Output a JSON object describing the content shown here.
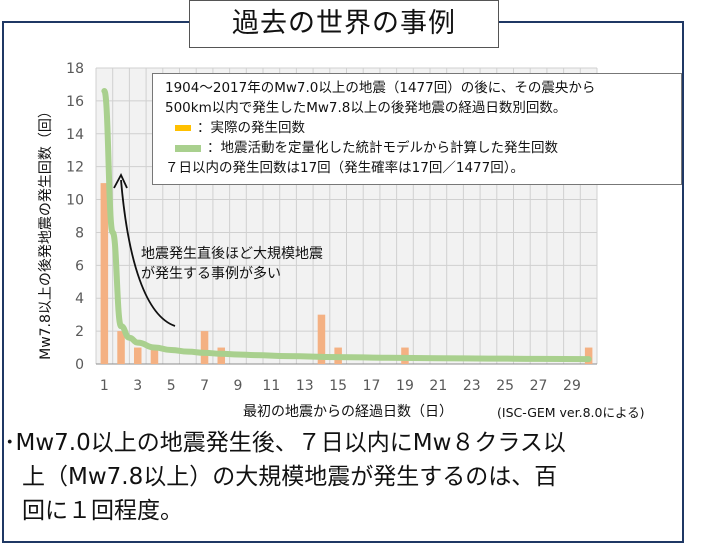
{
  "title": "過去の世界の事例",
  "note": {
    "line1": "1904～2017年のMw7.0以上の地震（1477回）の後に、その震央から",
    "line2": "500km以内で発生したMw7.8以上の後発地震の経過日数別回数。",
    "legend_actual": "：実際の発生回数",
    "legend_model": "：地震活動を定量化した統計モデルから計算した発生回数",
    "line5": "７日以内の発生回数は17回（発生確率は17回／1477回）。"
  },
  "callout": {
    "line1": "地震発生直後ほど大規模地震",
    "line2": "が発生する事例が多い"
  },
  "source": "(ISC-GEM ver.8.0による)",
  "summary": {
    "line1": "･Mw7.0以上の地震発生後、７日以内にMw８クラス以",
    "line2": "上（Mw7.8以上）の大規模地震が発生するのは、百",
    "line3": "回に１回程度。"
  },
  "colors": {
    "bar": "#f4b183",
    "curve": "#a9d08e",
    "legend_actual": "#ffc000",
    "frame": "#1f3864"
  },
  "chart_data": {
    "type": "bar",
    "xlabel": "最初の地震からの経過日数（日）",
    "ylabel": "Mw7.8以上の後発地震の発生回数（回）",
    "x_ticks": [
      1,
      3,
      5,
      7,
      9,
      11,
      13,
      15,
      17,
      19,
      21,
      23,
      25,
      27,
      29
    ],
    "y_ticks": [
      0,
      2,
      4,
      6,
      8,
      10,
      12,
      14,
      16,
      18
    ],
    "xlim": [
      0.5,
      30.5
    ],
    "ylim": [
      0,
      18
    ],
    "grid": true,
    "series": [
      {
        "name": "実際の発生回数",
        "type": "bar",
        "x": [
          1,
          2,
          3,
          4,
          5,
          6,
          7,
          8,
          9,
          10,
          11,
          12,
          13,
          14,
          15,
          16,
          17,
          18,
          19,
          20,
          21,
          22,
          23,
          24,
          25,
          26,
          27,
          28,
          29,
          30
        ],
        "values": [
          11,
          2,
          1,
          1,
          0,
          0,
          2,
          1,
          0,
          0,
          0,
          0,
          0,
          3,
          1,
          0,
          0,
          0,
          1,
          0,
          0,
          0,
          0,
          0,
          0,
          0,
          0,
          0,
          0,
          1
        ]
      },
      {
        "name": "地震活動を定量化した統計モデルから計算した発生回数",
        "type": "line",
        "x": [
          1,
          1.5,
          2,
          2.5,
          3,
          4,
          5,
          6,
          7,
          8,
          9,
          10,
          12,
          15,
          18,
          21,
          24,
          27,
          30
        ],
        "values": [
          16.6,
          8.0,
          2.3,
          1.6,
          1.3,
          1.0,
          0.85,
          0.75,
          0.68,
          0.62,
          0.58,
          0.54,
          0.48,
          0.42,
          0.38,
          0.35,
          0.33,
          0.31,
          0.3
        ]
      }
    ]
  }
}
